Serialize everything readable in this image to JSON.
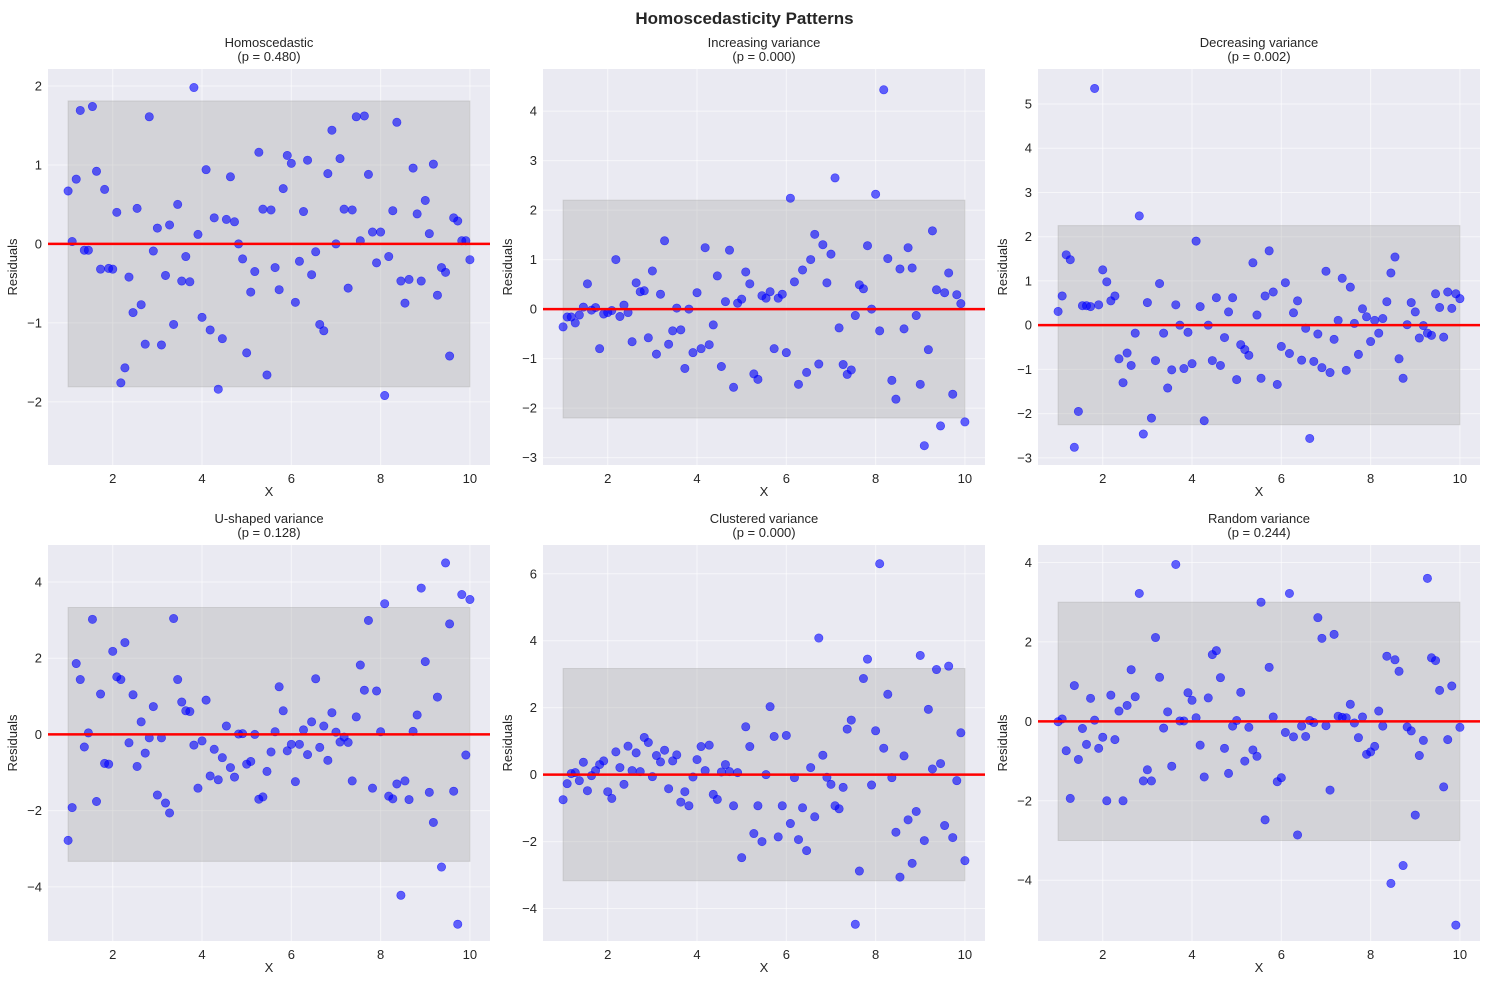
{
  "figure": {
    "title": "Homoscedasticity Patterns",
    "colors": {
      "axes_bg": "#eaeaf2",
      "grid": "#ffffff",
      "points": "#0000ff",
      "zero_line": "#ff0000",
      "band": "#aaaaaa"
    }
  },
  "chart_data": [
    {
      "type": "scatter",
      "title": "Homoscedastic",
      "subtitle": "(p = 0.480)",
      "xlabel": "X",
      "ylabel": "Residuals",
      "xlim": [
        0.55,
        10.45
      ],
      "ylim": [
        -2.8,
        2.215
      ],
      "xticks": [
        2,
        4,
        6,
        8,
        10
      ],
      "yticks": [
        -2,
        -1,
        0,
        1,
        2
      ],
      "ytick_labels": [
        "−2",
        "−1",
        "0",
        "1",
        "2"
      ],
      "band": [
        -1.81,
        1.81
      ],
      "zero_line": 0,
      "grid": true,
      "x_range": [
        1,
        10
      ],
      "residuals": [
        0.67,
        0.03,
        0.82,
        1.69,
        -0.08,
        -0.08,
        1.74,
        0.92,
        -0.32,
        0.69,
        -0.31,
        -0.32,
        0.4,
        -1.76,
        -1.57,
        -0.42,
        -0.87,
        0.45,
        -0.77,
        -1.27,
        1.61,
        -0.09,
        0.2,
        -1.28,
        -0.4,
        0.24,
        -1.02,
        0.5,
        -0.47,
        -0.16,
        -0.48,
        1.98,
        0.12,
        -0.93,
        0.94,
        -1.09,
        0.33,
        -1.84,
        -1.2,
        0.31,
        0.85,
        0.28,
        0.0,
        -0.19,
        -1.38,
        -0.61,
        -0.35,
        1.16,
        0.44,
        -1.66,
        0.43,
        -0.3,
        -0.58,
        0.7,
        1.12,
        1.02,
        -0.74,
        -0.22,
        0.41,
        1.06,
        -0.39,
        -0.1,
        -1.02,
        -1.1,
        0.89,
        1.44,
        0.0,
        1.08,
        0.44,
        -0.56,
        0.43,
        1.61,
        0.04,
        1.62,
        0.88,
        0.15,
        -0.24,
        0.15,
        -1.92,
        -0.16,
        0.42,
        1.54,
        -0.47,
        -0.75,
        -0.45,
        0.96,
        0.38,
        -0.47,
        0.55,
        0.13,
        1.01,
        -0.65,
        -0.3,
        -0.36,
        -1.42,
        0.33,
        0.29,
        0.04,
        0.04,
        -0.2
      ]
    },
    {
      "type": "scatter",
      "title": "Increasing variance",
      "subtitle": "(p = 0.000)",
      "xlabel": "X",
      "ylabel": "Residuals",
      "xlim": [
        0.55,
        10.45
      ],
      "ylim": [
        -3.15,
        4.85
      ],
      "xticks": [
        2,
        4,
        6,
        8,
        10
      ],
      "yticks": [
        -3,
        -2,
        -1,
        0,
        1,
        2,
        3,
        4
      ],
      "ytick_labels": [
        "−3",
        "−2",
        "−1",
        "0",
        "1",
        "2",
        "3",
        "4"
      ],
      "band": [
        -2.2,
        2.2
      ],
      "zero_line": 0,
      "grid": true,
      "x_range": [
        1,
        10
      ],
      "residuals": [
        -0.36,
        -0.16,
        -0.16,
        -0.28,
        -0.12,
        0.04,
        0.51,
        -0.02,
        0.03,
        -0.8,
        -0.1,
        -0.07,
        -0.03,
        1.0,
        -0.15,
        0.08,
        -0.07,
        -0.66,
        0.53,
        0.35,
        0.37,
        -0.58,
        0.77,
        -0.91,
        0.3,
        1.38,
        -0.71,
        -0.44,
        0.02,
        -0.42,
        -1.2,
        0.0,
        -0.88,
        0.33,
        -0.8,
        1.24,
        -0.72,
        -0.32,
        0.67,
        -1.16,
        0.15,
        1.19,
        -1.58,
        0.12,
        0.2,
        0.75,
        0.51,
        -1.31,
        -1.42,
        0.27,
        0.22,
        0.35,
        -0.8,
        0.22,
        0.3,
        -0.88,
        2.24,
        0.55,
        -1.52,
        0.79,
        -1.28,
        1.0,
        1.51,
        -1.11,
        1.3,
        0.53,
        1.11,
        2.65,
        -0.38,
        -1.12,
        -1.32,
        -1.23,
        -0.13,
        0.49,
        0.41,
        1.28,
        0.0,
        2.32,
        -0.44,
        4.43,
        1.02,
        -1.44,
        -1.82,
        0.81,
        -0.4,
        1.24,
        0.83,
        -0.13,
        -1.52,
        -2.76,
        -0.82,
        1.58,
        0.39,
        -2.36,
        0.33,
        0.73,
        -1.72,
        0.29,
        0.11,
        -2.28
      ]
    },
    {
      "type": "scatter",
      "title": "Decreasing variance",
      "subtitle": "(p = 0.002)",
      "xlabel": "X",
      "ylabel": "Residuals",
      "xlim": [
        0.55,
        10.45
      ],
      "ylim": [
        -3.16,
        5.79
      ],
      "xticks": [
        2,
        4,
        6,
        8,
        10
      ],
      "yticks": [
        -3,
        -2,
        -1,
        0,
        1,
        2,
        3,
        4,
        5
      ],
      "ytick_labels": [
        "−3",
        "−2",
        "−1",
        "0",
        "1",
        "2",
        "3",
        "4",
        "5"
      ],
      "band": [
        -2.25,
        2.25
      ],
      "zero_line": 0,
      "grid": true,
      "x_range": [
        1,
        10
      ],
      "residuals": [
        0.31,
        0.66,
        1.59,
        1.48,
        -2.76,
        -1.95,
        0.44,
        0.44,
        0.42,
        5.35,
        0.46,
        1.25,
        0.98,
        0.55,
        0.66,
        -0.76,
        -1.3,
        -0.63,
        -0.91,
        -0.18,
        2.47,
        -2.46,
        0.51,
        -2.1,
        -0.8,
        0.94,
        -0.18,
        -1.42,
        -1.01,
        0.46,
        0.0,
        -0.98,
        -0.16,
        -0.87,
        1.9,
        0.42,
        -2.16,
        0.0,
        -0.8,
        0.62,
        -0.91,
        -0.28,
        0.3,
        0.62,
        -1.23,
        -0.44,
        -0.55,
        -0.68,
        1.41,
        0.23,
        -1.2,
        0.66,
        1.68,
        0.75,
        -1.34,
        -0.48,
        0.96,
        -0.64,
        0.28,
        0.55,
        -0.79,
        -0.07,
        -2.56,
        -0.82,
        -0.2,
        -0.96,
        1.22,
        -1.07,
        -0.32,
        0.11,
        1.06,
        -1.02,
        0.86,
        0.04,
        -0.66,
        0.37,
        0.19,
        -0.37,
        0.11,
        -0.18,
        0.15,
        0.53,
        1.18,
        1.54,
        -0.76,
        -1.2,
        0.01,
        0.51,
        0.3,
        -0.29,
        -0.01,
        -0.18,
        -0.23,
        0.71,
        0.4,
        -0.27,
        0.75,
        0.38,
        0.71,
        0.6
      ]
    },
    {
      "type": "scatter",
      "title": "U-shaped variance",
      "subtitle": "(p = 0.128)",
      "xlabel": "X",
      "ylabel": "Residuals",
      "xlim": [
        0.55,
        10.45
      ],
      "ylim": [
        -5.42,
        4.97
      ],
      "xticks": [
        2,
        4,
        6,
        8,
        10
      ],
      "yticks": [
        -4,
        -2,
        0,
        2,
        4
      ],
      "ytick_labels": [
        "−4",
        "−2",
        "0",
        "2",
        "4"
      ],
      "band": [
        -3.33,
        3.33
      ],
      "zero_line": 0,
      "grid": true,
      "x_range": [
        1,
        10
      ],
      "residuals": [
        -2.78,
        -1.92,
        1.86,
        1.44,
        -0.33,
        0.04,
        3.02,
        -1.76,
        1.06,
        -0.76,
        -0.78,
        2.18,
        1.51,
        1.44,
        2.41,
        -0.22,
        1.04,
        -0.84,
        0.33,
        -0.49,
        -0.09,
        0.73,
        -1.59,
        -0.09,
        -1.8,
        -2.06,
        3.04,
        1.44,
        0.85,
        0.62,
        0.6,
        -0.28,
        -1.41,
        -0.17,
        0.9,
        -1.09,
        -0.39,
        -1.19,
        -0.61,
        0.22,
        -0.87,
        -1.12,
        0.01,
        0.02,
        -0.78,
        -0.71,
        0.0,
        -1.7,
        -1.64,
        -0.97,
        -0.46,
        0.07,
        1.25,
        0.62,
        -0.43,
        -0.26,
        -1.24,
        -0.26,
        0.12,
        -0.53,
        0.33,
        1.46,
        -0.34,
        0.22,
        -0.68,
        0.57,
        0.06,
        -0.2,
        -0.07,
        -0.21,
        -1.22,
        0.46,
        1.82,
        1.16,
        2.99,
        -1.41,
        1.14,
        0.07,
        3.43,
        -1.62,
        -1.69,
        -1.3,
        -4.22,
        -1.22,
        -1.71,
        0.08,
        0.51,
        3.84,
        1.91,
        -1.52,
        -2.31,
        0.98,
        -3.48,
        4.5,
        2.9,
        -1.49,
        -4.98,
        3.67,
        -0.54,
        3.54
      ]
    },
    {
      "type": "scatter",
      "title": "Clustered variance",
      "subtitle": "(p = 0.000)",
      "xlabel": "X",
      "ylabel": "Residuals",
      "xlim": [
        0.55,
        10.45
      ],
      "ylim": [
        -4.97,
        6.86
      ],
      "xticks": [
        2,
        4,
        6,
        8,
        10
      ],
      "yticks": [
        -4,
        -2,
        0,
        2,
        4,
        6
      ],
      "ytick_labels": [
        "−4",
        "−2",
        "0",
        "2",
        "4",
        "6"
      ],
      "band": [
        -3.17,
        3.17
      ],
      "zero_line": 0,
      "grid": true,
      "x_range": [
        1,
        10
      ],
      "residuals": [
        -0.75,
        -0.27,
        0.03,
        0.06,
        -0.18,
        0.37,
        -0.48,
        -0.03,
        0.12,
        0.3,
        0.41,
        -0.51,
        -0.71,
        0.68,
        0.21,
        -0.29,
        0.85,
        0.12,
        0.65,
        0.09,
        1.11,
        0.96,
        -0.06,
        0.57,
        0.38,
        0.73,
        -0.42,
        0.41,
        0.59,
        -0.82,
        -0.51,
        -0.93,
        -0.07,
        0.45,
        0.84,
        0.12,
        0.88,
        -0.59,
        -0.74,
        0.08,
        0.3,
        0.09,
        -0.93,
        0.06,
        -2.48,
        1.43,
        0.84,
        -1.76,
        -0.93,
        -2.0,
        0.0,
        2.03,
        1.14,
        -1.86,
        -0.93,
        1.17,
        -1.46,
        -0.09,
        -1.94,
        -0.99,
        -2.27,
        0.21,
        -1.26,
        4.08,
        0.58,
        -0.08,
        -0.29,
        -0.93,
        -1.02,
        -0.38,
        1.36,
        1.63,
        -4.47,
        -2.88,
        2.87,
        3.45,
        -0.31,
        1.31,
        6.3,
        0.79,
        2.4,
        -0.09,
        -1.72,
        -3.06,
        0.56,
        -1.35,
        -2.65,
        -1.1,
        3.56,
        -1.97,
        1.95,
        0.17,
        3.14,
        0.33,
        -1.52,
        3.24,
        -1.88,
        -0.18,
        1.25,
        -2.57
      ]
    },
    {
      "type": "scatter",
      "title": "Random variance",
      "subtitle": "(p = 0.244)",
      "xlabel": "X",
      "ylabel": "Residuals",
      "xlim": [
        0.55,
        10.45
      ],
      "ylim": [
        -5.53,
        4.44
      ],
      "xticks": [
        2,
        4,
        6,
        8,
        10
      ],
      "yticks": [
        -4,
        -2,
        0,
        2,
        4
      ],
      "ytick_labels": [
        "−4",
        "−2",
        "0",
        "2",
        "4"
      ],
      "band": [
        -3.0,
        3.0
      ],
      "zero_line": 0,
      "grid": true,
      "x_range": [
        1,
        10
      ],
      "residuals": [
        -0.01,
        0.06,
        -0.74,
        -1.94,
        0.9,
        -0.96,
        -0.18,
        -0.58,
        0.58,
        0.03,
        -0.68,
        -0.4,
        -2.0,
        0.66,
        -0.46,
        0.26,
        -2.0,
        0.4,
        1.3,
        0.62,
        3.22,
        -1.5,
        -1.22,
        -1.5,
        2.11,
        1.11,
        -0.17,
        0.24,
        -1.13,
        3.95,
        0.01,
        0.01,
        0.72,
        0.53,
        0.09,
        -0.6,
        -1.4,
        0.59,
        1.68,
        1.78,
        1.1,
        -0.68,
        -1.31,
        -0.12,
        0.02,
        0.73,
        -1.0,
        -0.15,
        -0.72,
        -0.88,
        3.0,
        -2.48,
        1.36,
        0.11,
        -1.52,
        -1.42,
        -0.28,
        3.22,
        -0.39,
        -2.86,
        -0.12,
        -0.38,
        0.02,
        -0.03,
        2.61,
        2.09,
        -0.11,
        -1.73,
        2.19,
        0.13,
        0.1,
        0.09,
        0.43,
        -0.04,
        -0.41,
        0.11,
        -0.83,
        -0.77,
        -0.63,
        0.26,
        -0.12,
        1.64,
        -4.08,
        1.55,
        1.26,
        -3.63,
        -0.14,
        -0.24,
        -2.36,
        -0.86,
        -0.48,
        3.6,
        1.6,
        1.53,
        0.78,
        -1.65,
        -0.46,
        0.89,
        -5.13,
        -0.15
      ]
    }
  ]
}
